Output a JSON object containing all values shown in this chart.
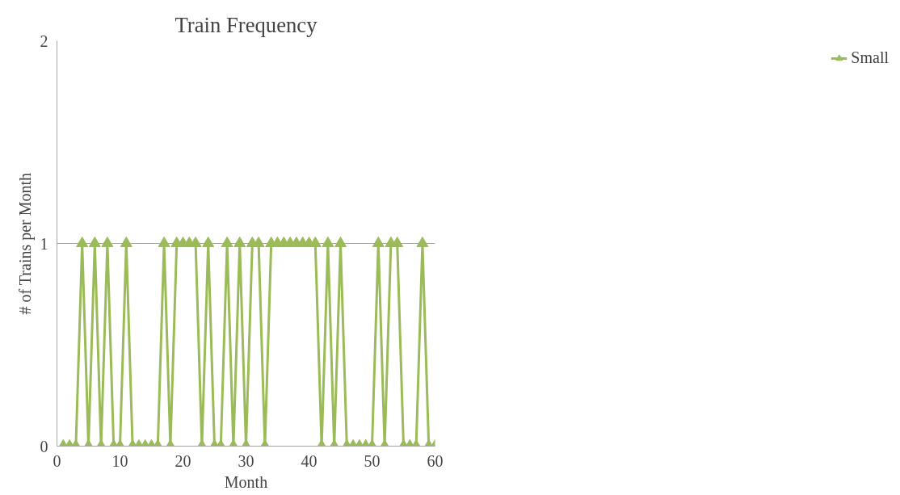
{
  "chart_data": {
    "type": "line",
    "title": "Train Frequency",
    "xlabel": "Month",
    "ylabel": "# of Trains per Month",
    "x": [
      1,
      2,
      3,
      4,
      5,
      6,
      7,
      8,
      9,
      10,
      11,
      12,
      13,
      14,
      15,
      16,
      17,
      18,
      19,
      20,
      21,
      22,
      23,
      24,
      25,
      26,
      27,
      28,
      29,
      30,
      31,
      32,
      33,
      34,
      35,
      36,
      37,
      38,
      39,
      40,
      41,
      42,
      43,
      44,
      45,
      46,
      47,
      48,
      49,
      50,
      51,
      52,
      53,
      54,
      55,
      56,
      57,
      58,
      59,
      60
    ],
    "series": [
      {
        "name": "Small",
        "color": "#9bbb59",
        "values": [
          0,
          0,
          0,
          1,
          0,
          1,
          0,
          1,
          0,
          0,
          1,
          0,
          0,
          0,
          0,
          0,
          1,
          0,
          1,
          1,
          1,
          1,
          0,
          1,
          0,
          0,
          1,
          0,
          1,
          0,
          1,
          1,
          0,
          1,
          1,
          1,
          1,
          1,
          1,
          1,
          1,
          0,
          1,
          0,
          1,
          0,
          0,
          0,
          0,
          0,
          1,
          0,
          1,
          1,
          0,
          0,
          0,
          1,
          0,
          0
        ]
      }
    ],
    "xlim": [
      0,
      60
    ],
    "xticks": [
      0,
      10,
      20,
      30,
      40,
      50,
      60
    ],
    "ylim": [
      0,
      2
    ],
    "yticks": [
      0,
      1,
      2
    ],
    "grid": "y",
    "legend": "right",
    "marker": "triangle",
    "line_style": "solid"
  }
}
